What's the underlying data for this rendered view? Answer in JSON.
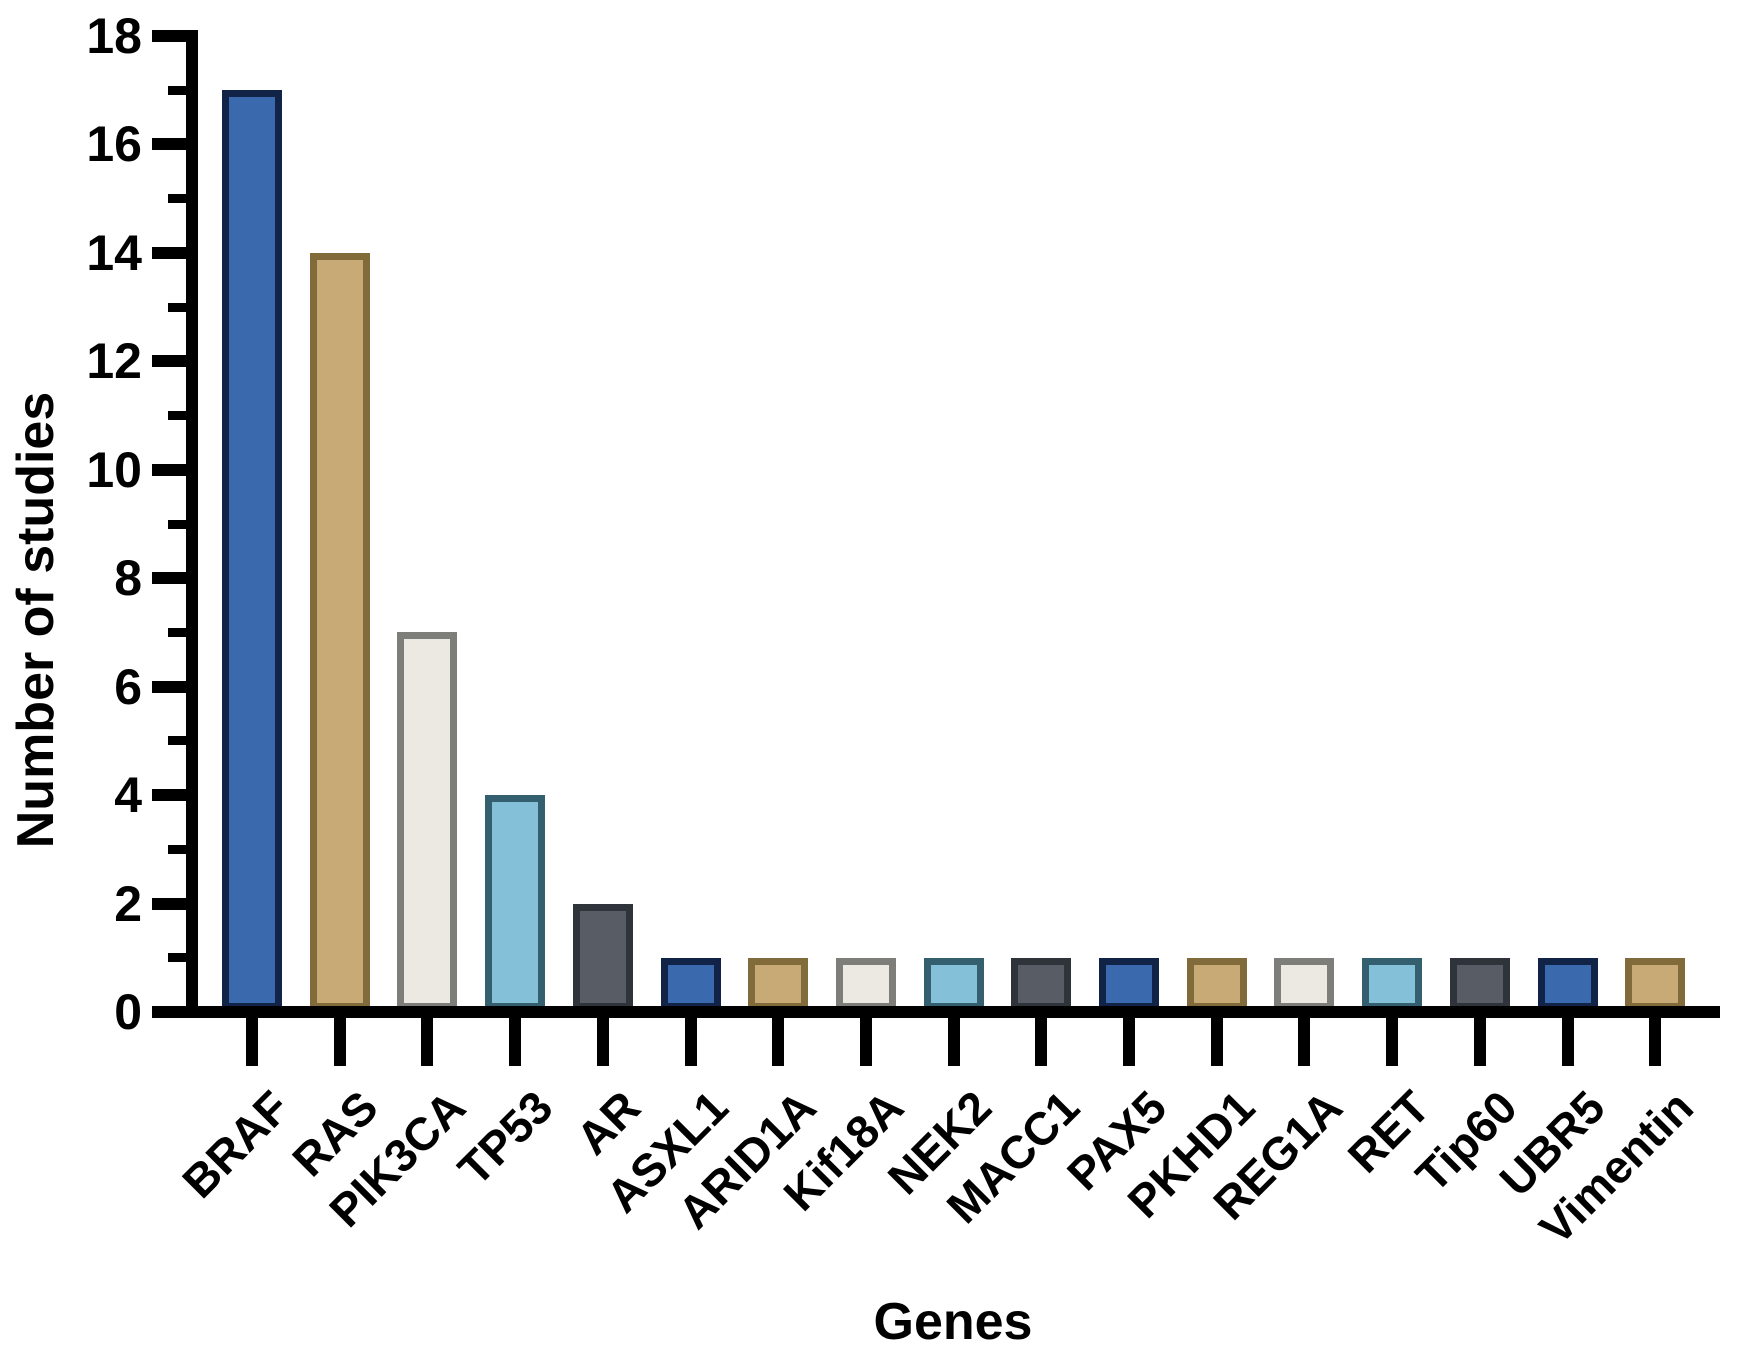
{
  "chart_data": {
    "type": "bar",
    "title": "",
    "xlabel": "Genes",
    "ylabel": "Number of studies",
    "categories": [
      "BRAF",
      "RAS",
      "PIK3CA",
      "TP53",
      "AR",
      "ASXL1",
      "ARID1A",
      "Kif18A",
      "NEK2",
      "MACC1",
      "PAX5",
      "PKHD1",
      "REG1A",
      "RET",
      "Tip60",
      "UBR5",
      "Vimentin"
    ],
    "values": [
      17,
      14,
      7,
      4,
      2,
      1,
      1,
      1,
      1,
      1,
      1,
      1,
      1,
      1,
      1,
      1,
      1
    ],
    "ylim": [
      0,
      18
    ],
    "ytick_major_step": 2,
    "ytick_minor_at_odd": true,
    "grid": false,
    "legend_position": "none",
    "background_color": "#FFFFFF",
    "axis_color": "#000000",
    "bar_palette_cycle": [
      {
        "name": "blue",
        "fill": "#3A69AE",
        "stroke": "#112447"
      },
      {
        "name": "tan",
        "fill": "#C8AA77",
        "stroke": "#826B3A"
      },
      {
        "name": "cream",
        "fill": "#ECE9E2",
        "stroke": "#7D7D7A"
      },
      {
        "name": "light-blue",
        "fill": "#84C0D8",
        "stroke": "#335F6E"
      },
      {
        "name": "dark-gray",
        "fill": "#575C65",
        "stroke": "#2F333A"
      }
    ]
  }
}
